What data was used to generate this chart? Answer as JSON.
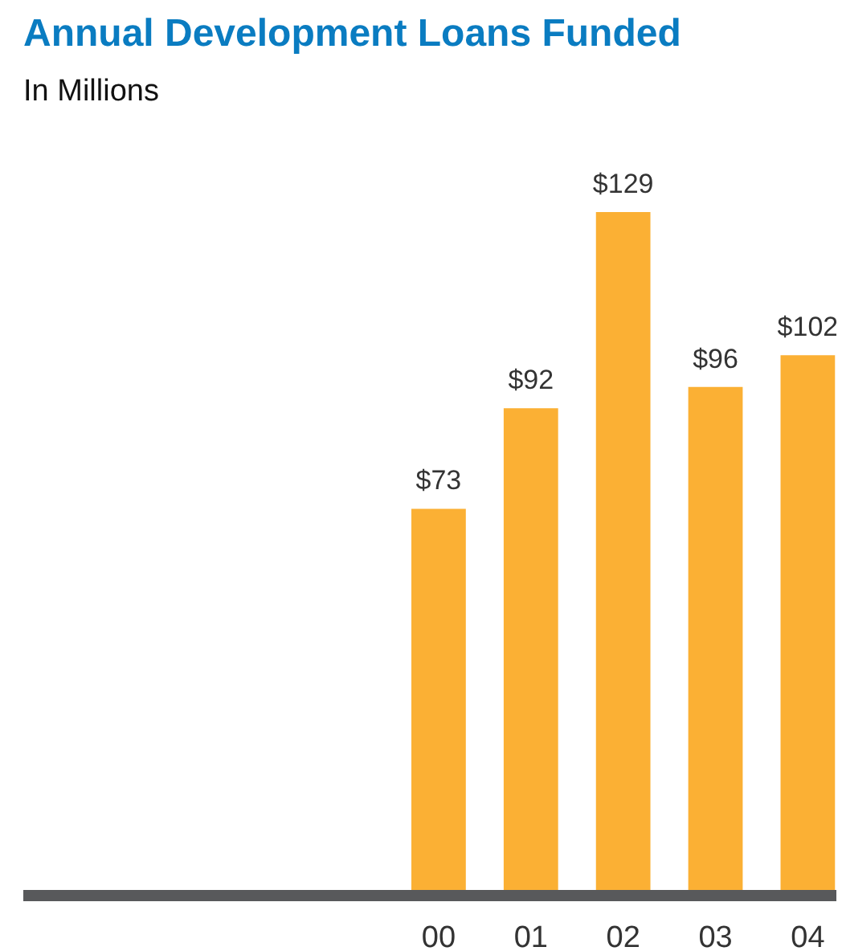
{
  "chart_data": {
    "type": "bar",
    "title": "Annual Development Loans Funded",
    "subtitle": "In Millions",
    "categories": [
      "00",
      "01",
      "02",
      "03",
      "04"
    ],
    "values": [
      73,
      92,
      129,
      96,
      102
    ],
    "value_labels": [
      "$73",
      "$92",
      "$129",
      "$96",
      "$102"
    ],
    "color": "#fbb034",
    "grid": false
  }
}
